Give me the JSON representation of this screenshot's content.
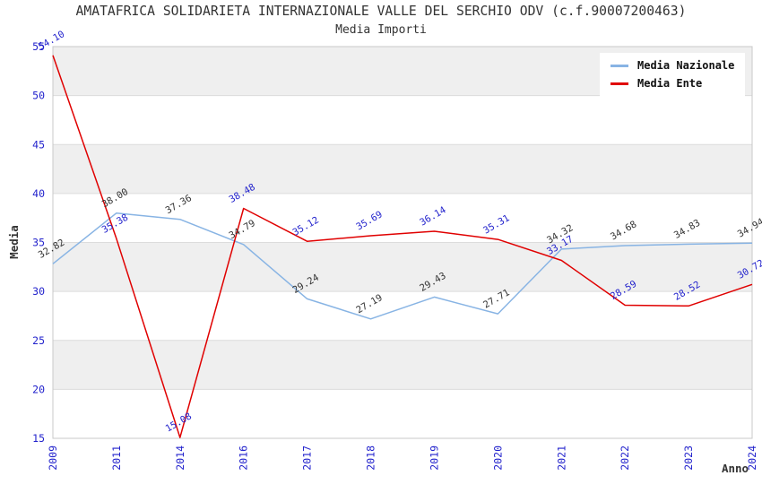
{
  "header": {
    "title": "AMATAFRICA SOLIDARIETA INTERNAZIONALE VALLE DEL SERCHIO ODV (c.f.90007200463)",
    "subtitle": "Media Importi"
  },
  "chart_data": {
    "type": "line",
    "title": "AMATAFRICA SOLIDARIETA INTERNAZIONALE VALLE DEL SERCHIO ODV (c.f.90007200463)",
    "subtitle": "Media Importi",
    "xlabel": "Anno",
    "ylabel": "Media",
    "categories": [
      "2009",
      "2011",
      "2014",
      "2016",
      "2017",
      "2018",
      "2019",
      "2020",
      "2021",
      "2022",
      "2023",
      "2024"
    ],
    "series": [
      {
        "name": "Media Nazionale",
        "color": "#88b4e4",
        "label_color": "#333333",
        "values": [
          32.82,
          38.0,
          37.36,
          34.79,
          29.24,
          27.19,
          29.43,
          27.71,
          34.32,
          34.68,
          34.83,
          34.94
        ],
        "labels": [
          "32.82",
          "38.00",
          "37.36",
          "34.79",
          "29.24",
          "27.19",
          "29.43",
          "27.71",
          "34.32",
          "34.68",
          "34.83",
          "34.94"
        ]
      },
      {
        "name": "Media Ente",
        "color": "#e00000",
        "label_color": "#2222cc",
        "values": [
          54.1,
          35.38,
          15.08,
          38.48,
          35.12,
          35.69,
          36.14,
          35.31,
          33.17,
          28.59,
          28.52,
          30.72
        ],
        "labels": [
          "54.10",
          "35.38",
          "15.08",
          "38.48",
          "35.12",
          "35.69",
          "36.14",
          "35.31",
          "33.17",
          "28.59",
          "28.52",
          "30.72"
        ]
      }
    ],
    "ylim": [
      15,
      55
    ],
    "yticks": [
      55,
      50,
      45,
      40,
      35,
      30,
      25,
      20,
      15
    ],
    "grid": true,
    "bands_alternating": true,
    "legend_position": "top-right",
    "colors": {
      "tick_label": "#2222cc",
      "axis_title": "#333333",
      "band": "#efefef",
      "gridline": "#dcdcdc",
      "border": "#c8c8c8",
      "background": "#ffffff"
    }
  }
}
